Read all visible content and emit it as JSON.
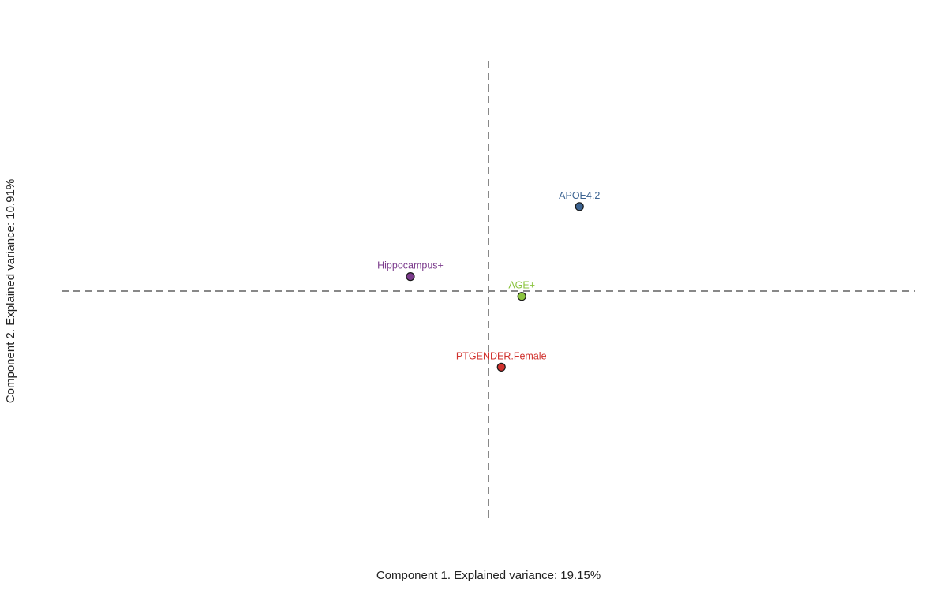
{
  "chart_data": {
    "type": "scatter",
    "title": "",
    "xlabel": "Component 1. Explained variance: 19.15%",
    "ylabel": "Component 2. Explained variance: 10.91%",
    "xlim": [
      -1.0,
      1.0
    ],
    "ylim": [
      -1.0,
      1.0
    ],
    "grid": false,
    "legend": "none",
    "reference_lines": {
      "x": 0,
      "y": 0
    },
    "points": [
      {
        "label": "APOE4.2",
        "x": 0.213,
        "y": 0.367,
        "color": "#3b6391"
      },
      {
        "label": "Hippocampus+",
        "x": -0.183,
        "y": 0.063,
        "color": "#7b3b8c"
      },
      {
        "label": "AGE+",
        "x": 0.078,
        "y": -0.023,
        "color": "#8bc43f"
      },
      {
        "label": "PTGENDER.Female",
        "x": 0.03,
        "y": -0.33,
        "color": "#d0312d"
      }
    ]
  }
}
